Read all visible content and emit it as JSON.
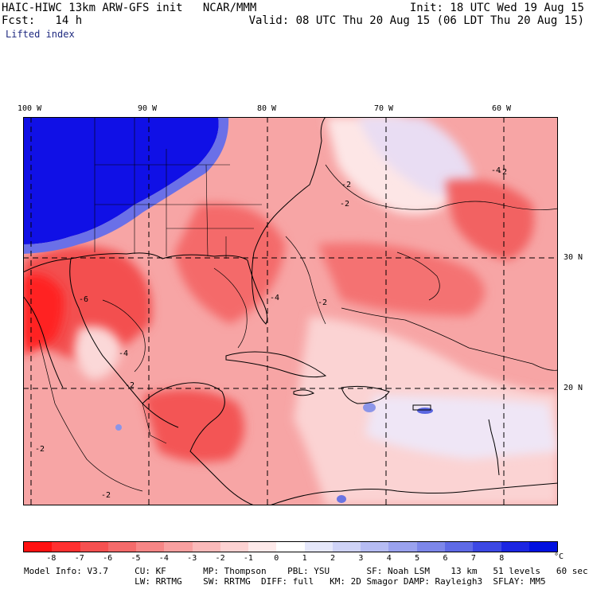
{
  "header": {
    "model": "HAIC-HIWC 13km ARW-GFS init   NCAR/MMM",
    "init": "Init: 18 UTC Wed 19 Aug 15",
    "fcst": "Fcst:   14 h",
    "valid": "Valid: 08 UTC Thu 20 Aug 15 (06 LDT Thu 20 Aug 15)",
    "field": "Lifted index"
  },
  "map": {
    "lon_labels": [
      "100 W",
      "90 W",
      "80 W",
      "70 W",
      "60 W"
    ],
    "lat_labels": [
      "30 N",
      "20 N"
    ],
    "contour_labels": [
      "-2",
      "-2",
      "-2",
      "-2",
      "-4",
      "-4",
      "-6",
      "-4",
      "-2",
      "-2",
      "-2"
    ],
    "colors": {
      "stable_blue": "#1010e8",
      "strong_red": "#ff2020",
      "mid_red": "#f06868",
      "light_red": "#f8b0b0",
      "pale": "#fde0e0",
      "light_blue": "#d6dcf6"
    }
  },
  "colorbar": {
    "colors": [
      "#ff1010",
      "#ff3030",
      "#f65050",
      "#f46a6a",
      "#f78686",
      "#f9a0a0",
      "#fbbaba",
      "#fdd2d2",
      "#feeaea",
      "#ffffff",
      "#e6e8fb",
      "#cfd3f7",
      "#b6bcf3",
      "#9aa2ee",
      "#7d87ea",
      "#5e6ae6",
      "#3c48e4",
      "#1c26e2",
      "#0010e0"
    ],
    "ticks": [
      "-8",
      "-7",
      "-6",
      "-5",
      "-4",
      "-3",
      "-2",
      "-1",
      "0",
      "1",
      "2",
      "3",
      "4",
      "5",
      "6",
      "7",
      "8"
    ],
    "unit": "°C"
  },
  "footer": {
    "line1": "Model Info: V3.7     CU: KF       MP: Thompson    PBL: YSU       SF: Noah LSM    13 km   51 levels   60 sec",
    "line2": "                     LW: RRTMG    SW: RRTMG  DIFF: full   KM: 2D Smagor DAMP: Rayleigh3  SFLAY: MM5"
  }
}
